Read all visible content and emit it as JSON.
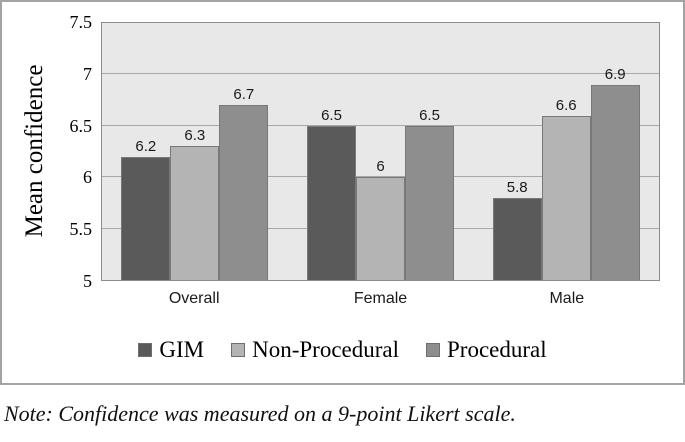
{
  "chart_data": {
    "type": "bar",
    "title": "",
    "ylabel": "Mean confidence",
    "xlabel": "",
    "ylim": [
      5,
      7.5
    ],
    "ytick_values": [
      5,
      5.5,
      6,
      6.5,
      7,
      7.5
    ],
    "ytick_labels": [
      "5",
      "5.5",
      "6",
      "6.5",
      "7",
      "7.5"
    ],
    "grid": true,
    "legend_position": "bottom",
    "categories": [
      "Overall",
      "Female",
      "Male"
    ],
    "series": [
      {
        "name": "GIM",
        "color": "#5a5a5a",
        "values": [
          6.2,
          6.5,
          5.8
        ],
        "labels": [
          "6.2",
          "6.5",
          "5.8"
        ]
      },
      {
        "name": "Non-Procedural",
        "color": "#b4b4b4",
        "values": [
          6.3,
          6.0,
          6.6
        ],
        "labels": [
          "6.3",
          "6",
          "6.6"
        ]
      },
      {
        "name": "Procedural",
        "color": "#8e8e8e",
        "values": [
          6.7,
          6.5,
          6.9
        ],
        "labels": [
          "6.7",
          "6.5",
          "6.9"
        ]
      }
    ]
  },
  "note": "Note: Confidence was measured on a 9-point Likert scale.",
  "colors": {
    "plot_background": "#e8e8e8",
    "gridline": "#a8a8a8",
    "bar_border": "#787878",
    "frame_border": "#a3a3a3",
    "plot_border": "#8c8c8c"
  }
}
